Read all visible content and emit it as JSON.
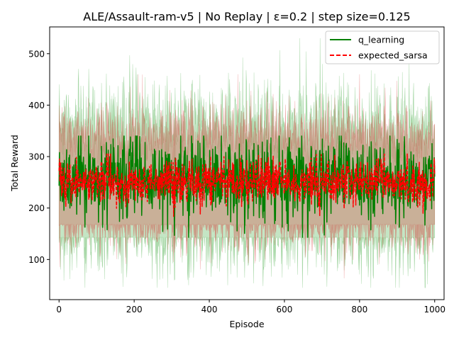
{
  "chart_data": {
    "type": "line",
    "title": "ALE/Assault-ram-v5 | No Replay | ε=0.2 | step size=0.125",
    "xlabel": "Episode",
    "ylabel": "Total Reward",
    "xlim": [
      -25,
      1025
    ],
    "ylim": [
      22,
      552
    ],
    "xticks": [
      0,
      200,
      400,
      600,
      800,
      1000
    ],
    "yticks": [
      100,
      200,
      300,
      400,
      500
    ],
    "grid": false,
    "legend_position": "upper-right",
    "n_episodes": 1000,
    "series": [
      {
        "name": "q_learning",
        "color": "#008000",
        "line_style": "solid",
        "band_color": "#2ca02c",
        "mean": 255,
        "mean_spread": 38,
        "mean_min": 143,
        "mean_max": 340,
        "band_lower_approx": 155,
        "band_upper_approx": 360,
        "band_min": 45,
        "band_max": 530
      },
      {
        "name": "expected_sarsa",
        "color": "#ff0000",
        "line_style": "dashed",
        "band_color": "#d62728",
        "mean": 250,
        "mean_spread": 22,
        "mean_min": 168,
        "mean_max": 305,
        "band_lower_approx": 170,
        "band_upper_approx": 340,
        "band_min": 55,
        "band_max": 460
      }
    ]
  }
}
